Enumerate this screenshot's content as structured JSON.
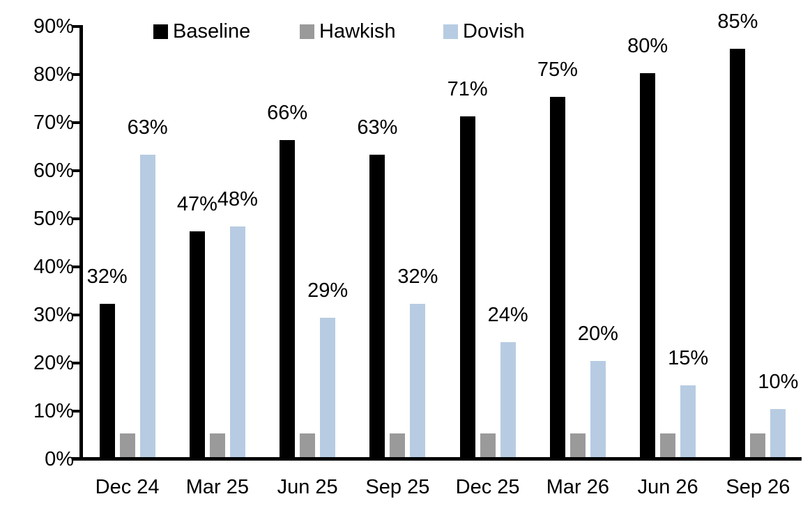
{
  "chart_data": {
    "type": "bar",
    "title": "",
    "xlabel": "",
    "ylabel": "",
    "ylim": [
      0,
      90
    ],
    "ytick_step": 10,
    "ytick_labels": [
      "0%",
      "10%",
      "20%",
      "30%",
      "40%",
      "50%",
      "60%",
      "70%",
      "80%",
      "90%"
    ],
    "grid": false,
    "legend_position": "top",
    "categories": [
      "Dec 24",
      "Mar 25",
      "Jun 25",
      "Sep 25",
      "Dec 25",
      "Mar 26",
      "Jun 26",
      "Sep 26"
    ],
    "series": [
      {
        "name": "Baseline",
        "color": "#000000",
        "values": [
          32,
          47,
          66,
          63,
          71,
          75,
          80,
          85
        ],
        "data_labels": [
          "32%",
          "47%",
          "66%",
          "63%",
          "71%",
          "75%",
          "80%",
          "85%"
        ],
        "show_labels": true
      },
      {
        "name": "Hawkish",
        "color": "#9A9A9A",
        "values": [
          5,
          5,
          5,
          5,
          5,
          5,
          5,
          5
        ],
        "data_labels": [],
        "show_labels": false
      },
      {
        "name": "Dovish",
        "color": "#B7CCE2",
        "values": [
          63,
          48,
          29,
          32,
          24,
          20,
          15,
          10
        ],
        "data_labels": [
          "63%",
          "48%",
          "29%",
          "32%",
          "24%",
          "20%",
          "15%",
          "10%"
        ],
        "show_labels": true
      }
    ],
    "colors": {
      "axis": "#000000",
      "text": "#000000",
      "background": "#FFFFFF"
    }
  }
}
